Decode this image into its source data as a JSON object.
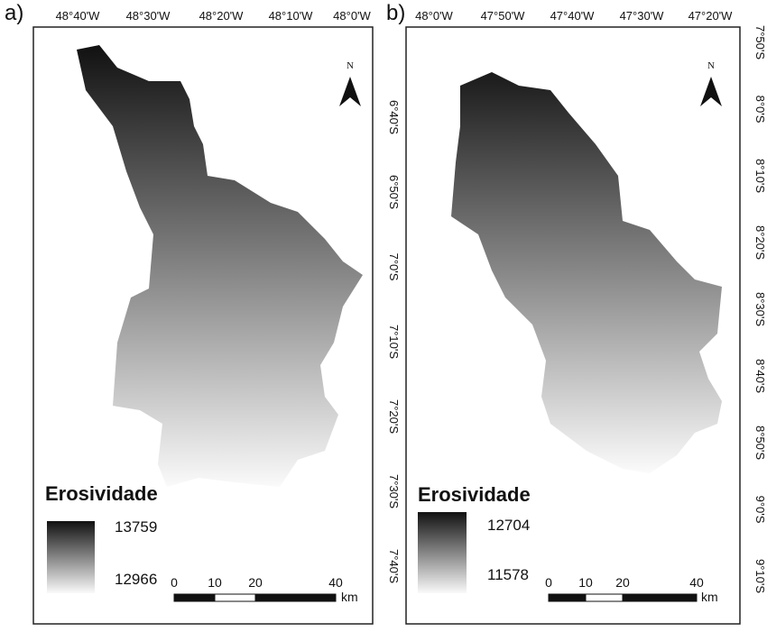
{
  "panels": [
    {
      "label": "a)",
      "longitude_labels": [
        "48°40'W",
        "48°30'W",
        "48°20'W",
        "48°10'W",
        "48°0'W"
      ],
      "latitude_labels": [
        "6°40'S",
        "6°50'S",
        "7°0'S",
        "7°10'S",
        "7°20'S",
        "7°30'S",
        "7°40'S"
      ],
      "north": "N",
      "legend": {
        "title": "Erosividade",
        "max": "13759",
        "min": "12966"
      },
      "scale_bar": {
        "ticks": [
          "0",
          "10",
          "20",
          "40"
        ],
        "unit": "km"
      }
    },
    {
      "label": "b)",
      "longitude_labels": [
        "48°0'W",
        "47°50'W",
        "47°40'W",
        "47°30'W",
        "47°20'W"
      ],
      "latitude_labels": [
        "7°50'S",
        "8°0'S",
        "8°10'S",
        "8°20'S",
        "8°30'S",
        "8°40'S",
        "8°50'S",
        "9°0'S",
        "9°10'S"
      ],
      "north": "N",
      "legend": {
        "title": "Erosividade",
        "max": "12704",
        "min": "11578"
      },
      "scale_bar": {
        "ticks": [
          "0",
          "10",
          "20",
          "40"
        ],
        "unit": "km"
      }
    }
  ]
}
